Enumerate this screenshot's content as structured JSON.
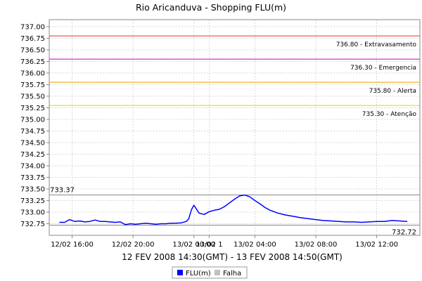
{
  "chart_data": {
    "type": "line",
    "title": "Rio Aricanduva - Shopping FLU(m)",
    "xlabel": "12 FEV 2008 14:30(GMT) - 13 FEV 2008 14:50(GMT)",
    "ylabel": "",
    "x_range": [
      "12/02 14:30",
      "13/02 14:50"
    ],
    "ylim": [
      732.5,
      737.15
    ],
    "y_ticks": [
      "732.75",
      "733.00",
      "733.25",
      "733.50",
      "733.75",
      "734.00",
      "734.25",
      "734.50",
      "734.75",
      "735.00",
      "735.25",
      "735.50",
      "735.75",
      "736.00",
      "736.25",
      "736.50",
      "736.75",
      "737.00"
    ],
    "x_ticks": [
      "12/02 16:00",
      "12/02 20:00",
      "13/02 00:00",
      "13/02 04:00",
      "13/02 08:00",
      "13/02 12:00",
      "13/02 1"
    ],
    "grid": true,
    "reference_lines": [
      {
        "value": 736.8,
        "label": "736.80 - Extravasamento",
        "color": "#e03030"
      },
      {
        "value": 736.3,
        "label": "736.30 - Emergencia",
        "color": "#c000c0"
      },
      {
        "value": 735.8,
        "label": "735.80 - Alerta",
        "color": "#e8a000"
      },
      {
        "value": 735.3,
        "label": "735.30 - Atenção",
        "color": "#e8d000"
      }
    ],
    "max_marker": {
      "value": 733.37,
      "label": "733.37"
    },
    "min_marker": {
      "value": 732.72,
      "label": "732.72"
    },
    "series": [
      {
        "name": "FLU(m)",
        "color": "#0000ff",
        "x": [
          "12/02 15:10",
          "12/02 15:30",
          "12/02 15:50",
          "12/02 16:10",
          "12/02 16:30",
          "12/02 16:50",
          "12/02 17:10",
          "12/02 17:30",
          "12/02 17:50",
          "12/02 18:10",
          "12/02 18:30",
          "12/02 18:50",
          "12/02 19:10",
          "12/02 19:30",
          "12/02 19:50",
          "12/02 20:10",
          "12/02 20:30",
          "12/02 20:50",
          "12/02 21:10",
          "12/02 21:30",
          "12/02 21:50",
          "12/02 22:10",
          "12/02 22:30",
          "12/02 22:50",
          "12/02 23:10",
          "12/02 23:30",
          "12/02 23:40",
          "12/02 23:50",
          "13/02 00:00",
          "13/02 00:20",
          "13/02 00:40",
          "13/02 01:00",
          "13/02 01:20",
          "13/02 01:40",
          "13/02 02:00",
          "13/02 02:20",
          "13/02 02:40",
          "13/02 03:00",
          "13/02 03:20",
          "13/02 03:40",
          "13/02 04:00",
          "13/02 04:20",
          "13/02 04:40",
          "13/02 05:00",
          "13/02 05:30",
          "13/02 06:00",
          "13/02 06:30",
          "13/02 07:00",
          "13/02 07:30",
          "13/02 08:00",
          "13/02 08:30",
          "13/02 09:00",
          "13/02 09:30",
          "13/02 10:00",
          "13/02 10:30",
          "13/02 11:00",
          "13/02 11:30",
          "13/02 12:00",
          "13/02 12:30",
          "13/02 13:00",
          "13/02 13:30",
          "13/02 14:00"
        ],
        "values": [
          732.78,
          732.78,
          732.84,
          732.8,
          732.81,
          732.79,
          732.8,
          732.83,
          732.8,
          732.8,
          732.79,
          732.78,
          732.79,
          732.73,
          732.75,
          732.74,
          732.75,
          732.76,
          732.75,
          732.74,
          732.75,
          732.75,
          732.76,
          732.76,
          732.77,
          732.8,
          732.86,
          733.05,
          733.15,
          732.98,
          732.95,
          733.01,
          733.04,
          733.06,
          733.12,
          733.2,
          733.28,
          733.35,
          733.37,
          733.33,
          733.25,
          733.18,
          733.1,
          733.04,
          732.98,
          732.94,
          732.91,
          732.88,
          732.86,
          732.84,
          732.82,
          732.81,
          732.8,
          732.79,
          732.79,
          732.78,
          732.79,
          732.8,
          732.8,
          732.82,
          732.81,
          732.8
        ]
      }
    ],
    "legend": [
      {
        "label": "FLU(m)",
        "color": "#0000ff"
      },
      {
        "label": "Falha",
        "color": "#c0c0c0"
      }
    ],
    "legend_position": "bottom"
  }
}
